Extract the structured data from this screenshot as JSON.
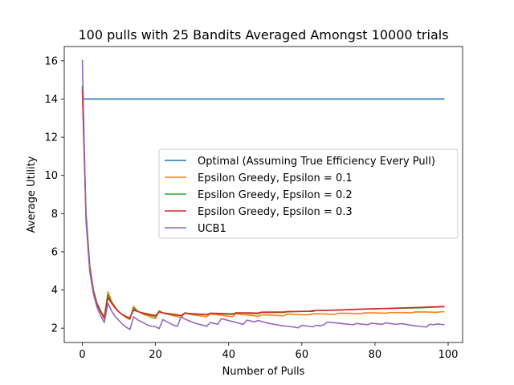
{
  "chart_data": {
    "type": "line",
    "title": "100 pulls with 25 Bandits Averaged Amongst 10000 trials",
    "xlabel": "Number of Pulls",
    "ylabel": "Average Utility",
    "xlim": [
      -4.95,
      103.95
    ],
    "ylim": [
      1.25,
      16.75
    ],
    "xticks": [
      0,
      20,
      40,
      60,
      80,
      100
    ],
    "yticks": [
      2,
      4,
      6,
      8,
      10,
      12,
      14,
      16
    ],
    "grid": false,
    "legend_position": "center-right",
    "series": [
      {
        "name": "Optimal (Assuming True Efficiency Every Pull)",
        "color": "#1f77b4",
        "points": [
          [
            0,
            14.7
          ],
          [
            0.3,
            14.0
          ],
          [
            99,
            14.0
          ]
        ]
      },
      {
        "name": "Epsilon Greedy, Epsilon = 0.1",
        "color": "#ff7f0e",
        "points": [
          [
            0,
            14.5
          ],
          [
            1,
            8.0
          ],
          [
            2,
            5.3
          ],
          [
            3,
            4.0
          ],
          [
            4,
            3.3
          ],
          [
            5,
            2.9
          ],
          [
            6,
            2.6
          ],
          [
            7,
            3.9
          ],
          [
            8,
            3.4
          ],
          [
            9,
            3.1
          ],
          [
            10,
            2.85
          ],
          [
            11,
            2.7
          ],
          [
            12,
            2.55
          ],
          [
            13,
            2.45
          ],
          [
            14,
            3.15
          ],
          [
            15,
            2.9
          ],
          [
            16,
            2.8
          ],
          [
            17,
            2.7
          ],
          [
            18,
            2.65
          ],
          [
            19,
            2.55
          ],
          [
            20,
            2.5
          ],
          [
            21,
            2.9
          ],
          [
            22,
            2.8
          ],
          [
            23,
            2.75
          ],
          [
            24,
            2.7
          ],
          [
            25,
            2.65
          ],
          [
            26,
            2.6
          ],
          [
            27,
            2.55
          ],
          [
            28,
            2.8
          ],
          [
            29,
            2.75
          ],
          [
            30,
            2.7
          ],
          [
            32,
            2.65
          ],
          [
            34,
            2.6
          ],
          [
            35,
            2.75
          ],
          [
            37,
            2.7
          ],
          [
            39,
            2.65
          ],
          [
            41,
            2.6
          ],
          [
            42,
            2.75
          ],
          [
            44,
            2.7
          ],
          [
            46,
            2.68
          ],
          [
            48,
            2.62
          ],
          [
            49,
            2.7
          ],
          [
            52,
            2.68
          ],
          [
            55,
            2.65
          ],
          [
            56,
            2.75
          ],
          [
            59,
            2.7
          ],
          [
            62,
            2.7
          ],
          [
            63,
            2.75
          ],
          [
            66,
            2.75
          ],
          [
            69,
            2.72
          ],
          [
            70,
            2.78
          ],
          [
            73,
            2.78
          ],
          [
            76,
            2.75
          ],
          [
            77,
            2.8
          ],
          [
            80,
            2.8
          ],
          [
            83,
            2.78
          ],
          [
            84,
            2.82
          ],
          [
            87,
            2.82
          ],
          [
            90,
            2.8
          ],
          [
            91,
            2.85
          ],
          [
            94,
            2.85
          ],
          [
            97,
            2.83
          ],
          [
            98,
            2.86
          ],
          [
            99,
            2.86
          ]
        ]
      },
      {
        "name": "Epsilon Greedy, Epsilon = 0.2",
        "color": "#2ca02c",
        "points": [
          [
            0,
            14.6
          ],
          [
            1,
            8.0
          ],
          [
            2,
            5.3
          ],
          [
            3,
            4.0
          ],
          [
            4,
            3.3
          ],
          [
            5,
            2.9
          ],
          [
            6,
            2.55
          ],
          [
            7,
            3.75
          ],
          [
            8,
            3.35
          ],
          [
            9,
            3.05
          ],
          [
            10,
            2.85
          ],
          [
            11,
            2.7
          ],
          [
            12,
            2.6
          ],
          [
            13,
            2.5
          ],
          [
            14,
            3.05
          ],
          [
            15,
            2.9
          ],
          [
            16,
            2.8
          ],
          [
            17,
            2.75
          ],
          [
            18,
            2.7
          ],
          [
            19,
            2.65
          ],
          [
            20,
            2.6
          ],
          [
            21,
            2.9
          ],
          [
            22,
            2.8
          ],
          [
            23,
            2.75
          ],
          [
            25,
            2.7
          ],
          [
            27,
            2.65
          ],
          [
            28,
            2.8
          ],
          [
            30,
            2.75
          ],
          [
            32,
            2.72
          ],
          [
            34,
            2.7
          ],
          [
            35,
            2.78
          ],
          [
            38,
            2.75
          ],
          [
            41,
            2.72
          ],
          [
            42,
            2.8
          ],
          [
            45,
            2.78
          ],
          [
            48,
            2.76
          ],
          [
            49,
            2.82
          ],
          [
            52,
            2.82
          ],
          [
            55,
            2.82
          ],
          [
            56,
            2.86
          ],
          [
            60,
            2.88
          ],
          [
            63,
            2.88
          ],
          [
            64,
            2.92
          ],
          [
            70,
            2.95
          ],
          [
            77,
            3.0
          ],
          [
            84,
            3.03
          ],
          [
            91,
            3.06
          ],
          [
            99,
            3.12
          ]
        ]
      },
      {
        "name": "Epsilon Greedy, Epsilon = 0.3",
        "color": "#d62728",
        "points": [
          [
            0,
            14.5
          ],
          [
            1,
            7.8
          ],
          [
            2,
            5.2
          ],
          [
            3,
            3.95
          ],
          [
            4,
            3.25
          ],
          [
            5,
            2.85
          ],
          [
            6,
            2.5
          ],
          [
            7,
            3.6
          ],
          [
            8,
            3.3
          ],
          [
            9,
            3.05
          ],
          [
            10,
            2.85
          ],
          [
            11,
            2.7
          ],
          [
            12,
            2.6
          ],
          [
            13,
            2.55
          ],
          [
            14,
            2.95
          ],
          [
            15,
            2.88
          ],
          [
            16,
            2.82
          ],
          [
            17,
            2.78
          ],
          [
            18,
            2.74
          ],
          [
            19,
            2.7
          ],
          [
            20,
            2.66
          ],
          [
            21,
            2.85
          ],
          [
            22,
            2.8
          ],
          [
            24,
            2.75
          ],
          [
            26,
            2.7
          ],
          [
            27,
            2.66
          ],
          [
            28,
            2.78
          ],
          [
            30,
            2.76
          ],
          [
            32,
            2.74
          ],
          [
            34,
            2.72
          ],
          [
            35,
            2.78
          ],
          [
            38,
            2.77
          ],
          [
            41,
            2.75
          ],
          [
            42,
            2.8
          ],
          [
            45,
            2.8
          ],
          [
            48,
            2.79
          ],
          [
            49,
            2.84
          ],
          [
            55,
            2.85
          ],
          [
            56,
            2.87
          ],
          [
            62,
            2.88
          ],
          [
            63,
            2.92
          ],
          [
            70,
            2.95
          ],
          [
            77,
            3.0
          ],
          [
            84,
            3.04
          ],
          [
            91,
            3.08
          ],
          [
            99,
            3.14
          ]
        ]
      },
      {
        "name": "UCB1",
        "color": "#9467bd",
        "points": [
          [
            0,
            16.05
          ],
          [
            1,
            7.6
          ],
          [
            2,
            5.0
          ],
          [
            3,
            3.8
          ],
          [
            4,
            3.1
          ],
          [
            5,
            2.65
          ],
          [
            6,
            2.3
          ],
          [
            7,
            3.3
          ],
          [
            8,
            2.9
          ],
          [
            9,
            2.6
          ],
          [
            10,
            2.4
          ],
          [
            11,
            2.2
          ],
          [
            12,
            2.05
          ],
          [
            13,
            1.93
          ],
          [
            14,
            2.6
          ],
          [
            15,
            2.45
          ],
          [
            16,
            2.35
          ],
          [
            17,
            2.25
          ],
          [
            18,
            2.15
          ],
          [
            19,
            2.1
          ],
          [
            20,
            2.08
          ],
          [
            21,
            1.98
          ],
          [
            22,
            2.45
          ],
          [
            23,
            2.35
          ],
          [
            24,
            2.25
          ],
          [
            25,
            2.15
          ],
          [
            26,
            2.1
          ],
          [
            27,
            2.6
          ],
          [
            28,
            2.48
          ],
          [
            29,
            2.4
          ],
          [
            30,
            2.32
          ],
          [
            31,
            2.25
          ],
          [
            32,
            2.2
          ],
          [
            33,
            2.15
          ],
          [
            34,
            2.1
          ],
          [
            35,
            2.3
          ],
          [
            36,
            2.25
          ],
          [
            37,
            2.2
          ],
          [
            38,
            2.5
          ],
          [
            39,
            2.45
          ],
          [
            40,
            2.4
          ],
          [
            41,
            2.35
          ],
          [
            42,
            2.3
          ],
          [
            43,
            2.25
          ],
          [
            44,
            2.2
          ],
          [
            45,
            2.42
          ],
          [
            46,
            2.38
          ],
          [
            47,
            2.33
          ],
          [
            48,
            2.4
          ],
          [
            49,
            2.35
          ],
          [
            50,
            2.3
          ],
          [
            51,
            2.25
          ],
          [
            52,
            2.22
          ],
          [
            53,
            2.18
          ],
          [
            54,
            2.15
          ],
          [
            55,
            2.12
          ],
          [
            56,
            2.1
          ],
          [
            57,
            2.08
          ],
          [
            58,
            2.05
          ],
          [
            59,
            2.02
          ],
          [
            60,
            2.15
          ],
          [
            61,
            2.12
          ],
          [
            62,
            2.1
          ],
          [
            63,
            2.07
          ],
          [
            64,
            2.15
          ],
          [
            65,
            2.12
          ],
          [
            66,
            2.18
          ],
          [
            67,
            2.32
          ],
          [
            68,
            2.3
          ],
          [
            69,
            2.28
          ],
          [
            70,
            2.26
          ],
          [
            71,
            2.24
          ],
          [
            72,
            2.22
          ],
          [
            73,
            2.2
          ],
          [
            74,
            2.18
          ],
          [
            75,
            2.25
          ],
          [
            76,
            2.22
          ],
          [
            77,
            2.2
          ],
          [
            78,
            2.18
          ],
          [
            79,
            2.26
          ],
          [
            80,
            2.24
          ],
          [
            81,
            2.22
          ],
          [
            82,
            2.2
          ],
          [
            83,
            2.28
          ],
          [
            84,
            2.25
          ],
          [
            85,
            2.22
          ],
          [
            86,
            2.2
          ],
          [
            87,
            2.24
          ],
          [
            88,
            2.22
          ],
          [
            89,
            2.18
          ],
          [
            90,
            2.15
          ],
          [
            91,
            2.12
          ],
          [
            92,
            2.1
          ],
          [
            93,
            2.08
          ],
          [
            94,
            2.06
          ],
          [
            95,
            2.2
          ],
          [
            96,
            2.18
          ],
          [
            97,
            2.22
          ],
          [
            98,
            2.2
          ],
          [
            99,
            2.18
          ]
        ]
      }
    ]
  }
}
